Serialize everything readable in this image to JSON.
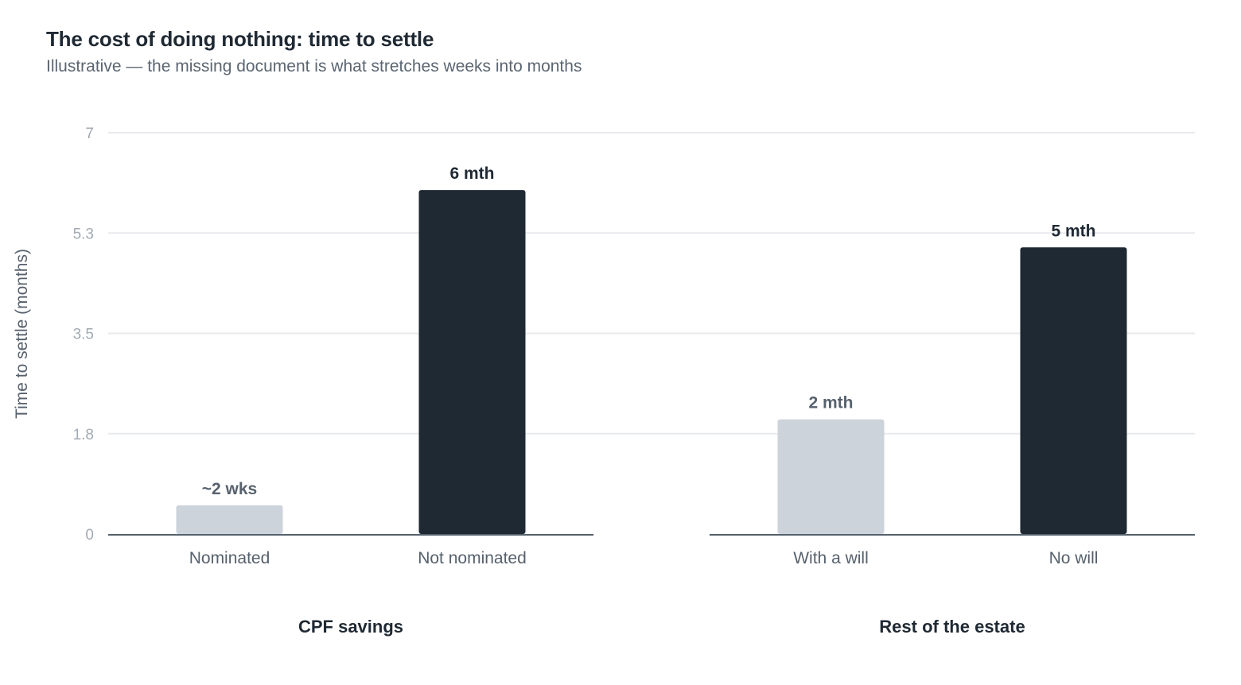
{
  "header": {
    "title": "The cost of doing nothing: time to settle",
    "subtitle": "Illustrative — the missing document is what stretches weeks into months"
  },
  "chart_data": {
    "type": "bar",
    "ylabel": "Time to settle (months)",
    "ylim": [
      0,
      7
    ],
    "yticks": [
      "0",
      "1.8",
      "3.5",
      "5.3",
      "7"
    ],
    "ytick_values": [
      0,
      1.75,
      3.5,
      5.25,
      7
    ],
    "grid": true,
    "colors": {
      "with_document": "#cdd3da",
      "without_document": "#1f2933",
      "gridline": "#e8eaed",
      "axis": "#56616d"
    },
    "groups": [
      {
        "name": "CPF savings",
        "bars": [
          {
            "category": "Nominated",
            "value": 0.5,
            "label": "~2 wks",
            "style": "with_document"
          },
          {
            "category": "Not nominated",
            "value": 6,
            "label": "6 mth",
            "style": "without_document"
          }
        ]
      },
      {
        "name": "Rest of the estate",
        "bars": [
          {
            "category": "With a will",
            "value": 2,
            "label": "2 mth",
            "style": "with_document"
          },
          {
            "category": "No will",
            "value": 5,
            "label": "5 mth",
            "style": "without_document"
          }
        ]
      }
    ]
  }
}
